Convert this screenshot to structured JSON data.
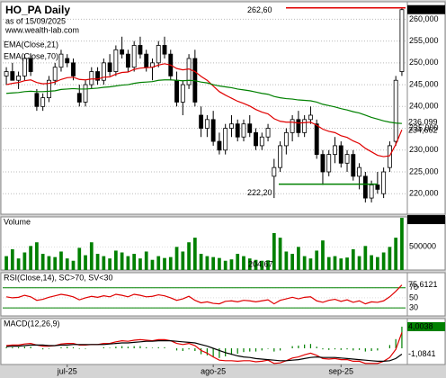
{
  "title": "HO_PA Daily",
  "subtitle": "as of 15/09/2025",
  "source": "www.wealth-lab.com",
  "chart_data": [
    {
      "type": "candlestick",
      "xlim": [
        -0.6,
        65.6
      ],
      "ylim": [
        215.3,
        264
      ],
      "yticks": [
        {
          "value": 220,
          "label": "220,000"
        },
        {
          "value": 225,
          "label": "225,000"
        },
        {
          "value": 230,
          "label": "230,000"
        },
        {
          "value": 235,
          "label": "235,000"
        },
        {
          "value": 240,
          "label": "240,000"
        },
        {
          "value": 245,
          "label": "245,000"
        },
        {
          "value": 250,
          "label": "250,000"
        },
        {
          "value": 255,
          "label": "255,000"
        },
        {
          "value": 260,
          "label": "260,000"
        }
      ],
      "grid": true,
      "up_color": "#ffffff",
      "down_color": "#000000",
      "close_label": "262,200",
      "open": [
        247,
        248,
        246,
        247,
        251,
        243,
        240,
        242,
        246,
        249,
        251,
        250,
        243,
        241,
        245,
        248,
        246,
        250,
        248,
        253,
        252,
        249,
        254,
        252,
        249,
        250,
        254,
        252,
        246,
        241,
        245,
        251,
        238,
        235,
        237,
        232,
        230,
        235,
        236,
        233,
        236,
        234,
        231,
        233,
        224,
        226,
        231,
        234,
        237,
        234,
        237,
        236,
        229,
        225,
        229,
        231,
        227,
        229,
        224,
        224,
        219,
        222,
        220,
        226,
        232,
        248
      ],
      "high": [
        249,
        250,
        248,
        252,
        252,
        244,
        243,
        247,
        250,
        253,
        252,
        251,
        245,
        246,
        249,
        249,
        251,
        252,
        254,
        256,
        253,
        255,
        256,
        253,
        251,
        255,
        256,
        253,
        248,
        246,
        252,
        253,
        240,
        238,
        239,
        234,
        236,
        238,
        237,
        237,
        238,
        235,
        234,
        236,
        228,
        232,
        235,
        238,
        239,
        238,
        240,
        237,
        230,
        230,
        233,
        232,
        230,
        230,
        227,
        225,
        223,
        225,
        226,
        232,
        247,
        262.6
      ],
      "low": [
        245,
        246,
        244,
        246,
        247,
        239,
        239,
        241,
        245,
        248,
        249,
        246,
        240,
        240,
        244,
        245,
        245,
        247,
        247,
        251,
        248,
        248,
        251,
        248,
        246,
        249,
        251,
        246,
        240,
        238,
        244,
        240,
        233,
        233,
        231,
        229,
        229,
        233,
        232,
        232,
        233,
        230,
        230,
        232,
        219,
        225,
        229,
        232,
        233,
        233,
        236,
        228,
        222,
        224,
        227,
        226,
        225,
        223,
        221,
        218,
        218,
        220,
        219,
        225,
        231,
        247
      ],
      "close": [
        248,
        246,
        247,
        251,
        248,
        240,
        242,
        246,
        249,
        252,
        250,
        247,
        241,
        245,
        248,
        246,
        250,
        248,
        253,
        252,
        249,
        254,
        252,
        249,
        250,
        254,
        252,
        247,
        241,
        245,
        251,
        241,
        235,
        237,
        232,
        230,
        235,
        236,
        233,
        236,
        234,
        231,
        233,
        235,
        226,
        231,
        234,
        237,
        234,
        237,
        238,
        229,
        225,
        229,
        231,
        227,
        229,
        224,
        226,
        219,
        222,
        221,
        225,
        231,
        246,
        262.2
      ],
      "series": [
        {
          "name": "EMA(Close,21)",
          "color": "#e00000",
          "last_label": "234,662",
          "values": [
            245,
            245.3,
            245.5,
            245.9,
            246.1,
            245.5,
            245.2,
            245.3,
            245.6,
            246.2,
            246.6,
            246.7,
            246.2,
            246.1,
            246.3,
            246.3,
            246.7,
            246.8,
            247.4,
            247.8,
            247.9,
            248.5,
            248.8,
            248.9,
            249,
            249.5,
            249.8,
            249.5,
            248.7,
            248.4,
            248.6,
            248,
            246.9,
            246,
            244.7,
            243.4,
            242.6,
            241.9,
            241.2,
            240.7,
            240.1,
            239.3,
            238.7,
            238.3,
            237.2,
            236.6,
            236.4,
            236.4,
            236.2,
            236.3,
            236.4,
            235.7,
            234.8,
            234.3,
            234,
            233.3,
            232.9,
            232.1,
            231.5,
            230.4,
            229.6,
            228.8,
            228.5,
            228.7,
            231.3,
            234.662
          ]
        },
        {
          "name": "EMA(Close,70)",
          "color": "#008000",
          "last_label": "236,099",
          "values": [
            243,
            243.1,
            243.2,
            243.4,
            243.5,
            243.4,
            243.4,
            243.5,
            243.6,
            243.9,
            244,
            244.1,
            244,
            244,
            244.1,
            244.2,
            244.4,
            244.5,
            244.7,
            244.9,
            245,
            245.3,
            245.5,
            245.6,
            245.7,
            246,
            246.1,
            246.1,
            246,
            245.9,
            246,
            245.9,
            245.6,
            245.4,
            245,
            244.7,
            244.5,
            244.3,
            244,
            243.8,
            243.6,
            243.3,
            243,
            242.8,
            242.3,
            242,
            241.8,
            241.7,
            241.5,
            241.4,
            241.3,
            241,
            240.5,
            240.2,
            239.9,
            239.5,
            239.2,
            238.8,
            238.5,
            238,
            237.5,
            237.1,
            236.7,
            236.4,
            236.2,
            236.099
          ]
        }
      ],
      "levels": [
        {
          "value": 262.6,
          "label": "262,60",
          "color": "#e00000"
        },
        {
          "value": 222.2,
          "label": "222,20",
          "color": "#008000"
        }
      ]
    },
    {
      "type": "bar",
      "title": "Volume",
      "color": "#008000",
      "ylim": [
        0,
        1150000
      ],
      "yticks": [
        500000
      ],
      "note": "204,67",
      "last_label": "1,13 M",
      "values": [
        300000,
        450000,
        250000,
        380000,
        520000,
        600000,
        350000,
        300000,
        280000,
        400000,
        250000,
        200000,
        480000,
        320000,
        600000,
        350000,
        300000,
        250000,
        420000,
        380000,
        300000,
        350000,
        250000,
        400000,
        220000,
        300000,
        260000,
        280000,
        500000,
        400000,
        600000,
        700000,
        350000,
        300000,
        280000,
        260000,
        200000,
        230000,
        350000,
        300000,
        250000,
        220000,
        200000,
        210000,
        800000,
        700000,
        400000,
        350000,
        500000,
        300000,
        250000,
        420000,
        640000,
        280000,
        300000,
        250000,
        270000,
        450000,
        300000,
        520000,
        320000,
        280000,
        380000,
        500000,
        700000,
        1130000
      ]
    },
    {
      "type": "line",
      "title": "RSI(Close,14), SC>70, SV<30",
      "ylim": [
        14,
        100
      ],
      "yticks": [
        30,
        50,
        70
      ],
      "bands": [
        70,
        30
      ],
      "band_color": "#008000",
      "series": [
        {
          "color": "#e00000",
          "last_label": "75,6121",
          "values": [
            52,
            50,
            51,
            55,
            52,
            45,
            47,
            51,
            54,
            57,
            55,
            52,
            46,
            50,
            53,
            51,
            54,
            52,
            57,
            55,
            52,
            57,
            55,
            52,
            53,
            56,
            54,
            50,
            45,
            48,
            53,
            45,
            40,
            42,
            39,
            38,
            43,
            44,
            42,
            45,
            44,
            42,
            44,
            46,
            38,
            45,
            48,
            51,
            48,
            51,
            52,
            44,
            41,
            45,
            47,
            43,
            46,
            41,
            44,
            38,
            42,
            41,
            44,
            52,
            63,
            75.6121
          ]
        }
      ]
    },
    {
      "type": "line",
      "title": "MACD(12,26,9)",
      "ylim": [
        -3,
        5.5
      ],
      "xticks": [
        {
          "value": 10,
          "label": "jul-25"
        },
        {
          "value": 34,
          "label": "ago-25"
        },
        {
          "value": 55,
          "label": "sep-25"
        }
      ],
      "series": [
        {
          "color": "#008000",
          "style": "histogram",
          "last_label": "4,0038",
          "values": [
            0.2,
            0.2,
            0.2,
            0.3,
            0.3,
            0,
            -0.2,
            -0.1,
            0,
            0.2,
            0.3,
            0.2,
            -0.1,
            -0.1,
            0,
            0,
            0.2,
            0.1,
            0.3,
            0.4,
            0.3,
            0.4,
            0.4,
            0.2,
            0.1,
            0.2,
            0.2,
            0,
            -0.4,
            -0.5,
            -0.2,
            -0.5,
            -1.1,
            -1.3,
            -1.6,
            -1.8,
            -1.5,
            -1.2,
            -1,
            -0.7,
            -0.6,
            -0.6,
            -0.4,
            -0.1,
            -0.6,
            -0.4,
            0,
            0.4,
            0.5,
            0.7,
            0.8,
            0.3,
            -0.2,
            -0.3,
            -0.2,
            -0.3,
            -0.2,
            -0.4,
            -0.3,
            -0.6,
            -0.5,
            -0.4,
            0,
            0.6,
            1.7,
            4.0038
          ]
        },
        {
          "color": "#e00000",
          "values": [
            0.5,
            0.6,
            0.6,
            0.8,
            0.9,
            0.6,
            0.4,
            0.4,
            0.5,
            0.8,
            0.9,
            0.9,
            0.6,
            0.6,
            0.7,
            0.7,
            0.9,
            0.9,
            1.2,
            1.4,
            1.3,
            1.5,
            1.6,
            1.5,
            1.4,
            1.6,
            1.6,
            1.4,
            0.9,
            0.7,
            0.9,
            0.5,
            -0.4,
            -0.9,
            -1.6,
            -2.2,
            -2.3,
            -2.3,
            -2.4,
            -2.3,
            -2.3,
            -2.5,
            -2.4,
            -2.2,
            -2.8,
            -2.7,
            -2.3,
            -1.8,
            -1.6,
            -1.2,
            -0.9,
            -1.3,
            -1.9,
            -2,
            -1.9,
            -2.1,
            -2.1,
            -2.4,
            -2.4,
            -2.8,
            -2.8,
            -2.8,
            -2.4,
            -1.7,
            -0.2,
            2.92
          ]
        },
        {
          "color": "#000000",
          "last_label": "-1,0841",
          "values": [
            0.3,
            0.4,
            0.4,
            0.5,
            0.6,
            0.6,
            0.6,
            0.5,
            0.5,
            0.6,
            0.6,
            0.7,
            0.7,
            0.7,
            0.7,
            0.7,
            0.7,
            0.8,
            0.9,
            1,
            1,
            1.1,
            1.2,
            1.3,
            1.3,
            1.4,
            1.4,
            1.4,
            1.3,
            1.2,
            1.1,
            1,
            0.7,
            0.4,
            0,
            -0.4,
            -0.8,
            -1.1,
            -1.4,
            -1.6,
            -1.7,
            -1.9,
            -2,
            -2.1,
            -2.2,
            -2.3,
            -2.3,
            -2.2,
            -2.1,
            -1.9,
            -1.7,
            -1.6,
            -1.7,
            -1.7,
            -1.7,
            -1.8,
            -1.9,
            -2,
            -2.1,
            -2.2,
            -2.3,
            -2.4,
            -2.4,
            -2.3,
            -1.9,
            -1.0841
          ]
        }
      ]
    }
  ]
}
